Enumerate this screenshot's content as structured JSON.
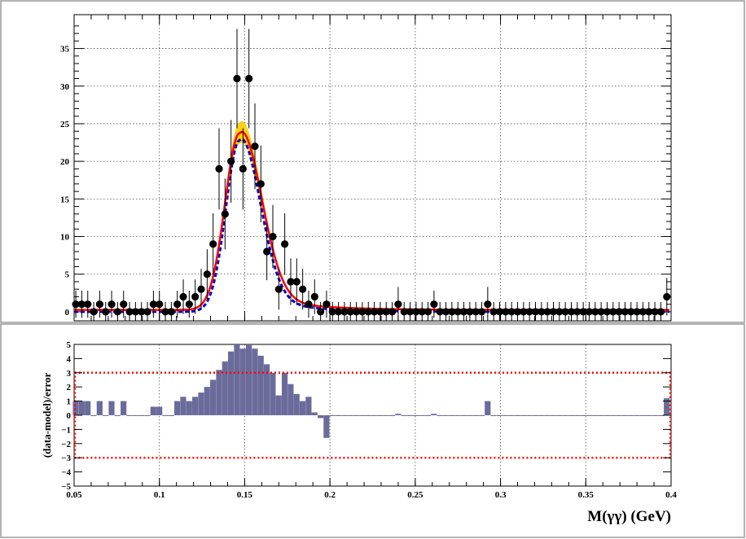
{
  "chart_data": [
    {
      "type": "scatter",
      "panel": "fit",
      "xlabel": "",
      "ylabel": "",
      "xlim": [
        0.05,
        0.4
      ],
      "ylim": [
        -1.2,
        39.5
      ],
      "yticks": [
        "0",
        "5",
        "10",
        "15",
        "20",
        "25",
        "30",
        "35"
      ],
      "grid": true,
      "data": {
        "x": [
          0.051,
          0.0545,
          0.058,
          0.0615,
          0.065,
          0.0685,
          0.072,
          0.0755,
          0.079,
          0.0825,
          0.086,
          0.0895,
          0.093,
          0.0965,
          0.1,
          0.1035,
          0.107,
          0.1105,
          0.114,
          0.1175,
          0.121,
          0.1245,
          0.128,
          0.1315,
          0.135,
          0.1385,
          0.142,
          0.1455,
          0.149,
          0.1525,
          0.156,
          0.1595,
          0.163,
          0.1665,
          0.17,
          0.1735,
          0.177,
          0.1805,
          0.184,
          0.1875,
          0.191,
          0.1945,
          0.198,
          0.2015,
          0.205,
          0.2085,
          0.212,
          0.2155,
          0.219,
          0.2225,
          0.226,
          0.2295,
          0.233,
          0.2365,
          0.24,
          0.2435,
          0.247,
          0.2505,
          0.254,
          0.2575,
          0.261,
          0.2645,
          0.268,
          0.2715,
          0.275,
          0.2785,
          0.282,
          0.2855,
          0.289,
          0.2925,
          0.296,
          0.2995,
          0.303,
          0.3065,
          0.31,
          0.3135,
          0.317,
          0.3205,
          0.324,
          0.3275,
          0.331,
          0.3345,
          0.338,
          0.3415,
          0.345,
          0.3485,
          0.352,
          0.3555,
          0.359,
          0.3625,
          0.366,
          0.3695,
          0.373,
          0.3765,
          0.38,
          0.3835,
          0.387,
          0.3905,
          0.394,
          0.3975
        ],
        "y": [
          1,
          1,
          1,
          0,
          1,
          0,
          1,
          0,
          1,
          0,
          0,
          0,
          0,
          1,
          1,
          0,
          0,
          1,
          2,
          1,
          2,
          3,
          5,
          9,
          19,
          13,
          20,
          31,
          19,
          31,
          22,
          17,
          8,
          10,
          3,
          9,
          4,
          4,
          3,
          1,
          2,
          0,
          1,
          0,
          0,
          0,
          0,
          0,
          0,
          0,
          0,
          0,
          0,
          0,
          1,
          0,
          0,
          0,
          0,
          0,
          1,
          0,
          0,
          0,
          0,
          0,
          0,
          0,
          0,
          1,
          0,
          0,
          0,
          0,
          0,
          0,
          0,
          0,
          0,
          0,
          0,
          0,
          0,
          0,
          0,
          0,
          0,
          0,
          0,
          0,
          0,
          0,
          0,
          0,
          0,
          0,
          0,
          0,
          0,
          2
        ],
        "err": [
          1.8,
          1.8,
          1.8,
          1.3,
          1.8,
          1.3,
          1.8,
          1.3,
          1.8,
          1.3,
          1.3,
          1.3,
          1.3,
          1.8,
          1.8,
          1.3,
          1.3,
          1.8,
          2.3,
          1.8,
          2.3,
          2.7,
          3.3,
          4.1,
          5.4,
          4.7,
          5.5,
          6.6,
          5.4,
          6.6,
          5.7,
          5.1,
          3.8,
          4.2,
          2.7,
          4.1,
          3.1,
          3.1,
          2.7,
          1.8,
          2.3,
          1.3,
          1.8,
          1.3,
          1.3,
          1.3,
          1.3,
          1.3,
          1.3,
          1.3,
          1.3,
          1.3,
          1.3,
          1.3,
          2.3,
          1.3,
          1.3,
          1.3,
          1.3,
          1.3,
          1.8,
          1.3,
          1.3,
          1.3,
          1.3,
          1.3,
          1.3,
          1.3,
          1.3,
          2.3,
          1.3,
          1.3,
          1.3,
          1.3,
          1.3,
          1.3,
          1.3,
          1.3,
          1.3,
          1.3,
          1.3,
          1.3,
          1.3,
          1.3,
          1.3,
          1.3,
          1.3,
          1.3,
          1.3,
          1.3,
          1.3,
          1.3,
          1.3,
          1.3,
          1.3,
          1.3,
          1.3,
          1.3,
          1.3,
          2.5
        ]
      },
      "model_curves": [
        {
          "color": "#ff0000",
          "style": "solid",
          "peak_x": 0.147,
          "peak_y": 23.5,
          "sigma_left": 0.0085,
          "sigma_right": 0.0125,
          "tail": 0.6,
          "baseline": 0.25
        },
        {
          "color": "#0000cc",
          "style": "dashed",
          "peak_x": 0.147,
          "peak_y": 22.8,
          "sigma_left": 0.008,
          "sigma_right": 0.0118,
          "tail": 0.6,
          "baseline": 0.0
        }
      ],
      "band_color": "#ffcc00"
    },
    {
      "type": "bar",
      "panel": "pull",
      "ylabel": "(data-model)/error",
      "xlabel": "M(γγ) (GeV)",
      "xlim": [
        0.05,
        0.4
      ],
      "ylim": [
        -5,
        5
      ],
      "xticks": [
        "0.05",
        "0.1",
        "0.15",
        "0.2",
        "0.25",
        "0.3",
        "0.35",
        "0.4"
      ],
      "yticks": [
        "−5",
        "−4",
        "−3",
        "−2",
        "−1",
        "0",
        "1",
        "2",
        "3",
        "4",
        "5"
      ],
      "bar_color": "#6b6b9b",
      "bands": [
        -3,
        3
      ],
      "band_color": "#ff0000",
      "bin_width": 0.0035,
      "x": [
        0.051,
        0.0545,
        0.058,
        0.0615,
        0.065,
        0.0685,
        0.072,
        0.0755,
        0.079,
        0.0825,
        0.086,
        0.0895,
        0.093,
        0.0965,
        0.1,
        0.1035,
        0.107,
        0.1105,
        0.114,
        0.1175,
        0.121,
        0.1245,
        0.128,
        0.1315,
        0.135,
        0.1385,
        0.142,
        0.1455,
        0.149,
        0.1525,
        0.156,
        0.1595,
        0.163,
        0.1665,
        0.17,
        0.1735,
        0.177,
        0.1805,
        0.184,
        0.1875,
        0.191,
        0.1945,
        0.198,
        0.2015,
        0.205,
        0.2085,
        0.212,
        0.2155,
        0.219,
        0.2225,
        0.226,
        0.2295,
        0.233,
        0.2365,
        0.24,
        0.2435,
        0.247,
        0.2505,
        0.254,
        0.2575,
        0.261,
        0.2645,
        0.268,
        0.2715,
        0.275,
        0.2785,
        0.282,
        0.2855,
        0.289,
        0.2925,
        0.296,
        0.2995,
        0.303,
        0.3065,
        0.31,
        0.3135,
        0.317,
        0.3205,
        0.324,
        0.3275,
        0.331,
        0.3345,
        0.338,
        0.3415,
        0.345,
        0.3485,
        0.352,
        0.3555,
        0.359,
        0.3625,
        0.366,
        0.3695,
        0.373,
        0.3765,
        0.38,
        0.3835,
        0.387,
        0.3905,
        0.394,
        0.3975
      ],
      "values": [
        1.0,
        1.0,
        1.0,
        0,
        1.0,
        0,
        1.0,
        0,
        1.0,
        0,
        0,
        0,
        0,
        0.6,
        0.6,
        0,
        0,
        1.0,
        1.3,
        1.0,
        1.3,
        1.6,
        2.0,
        2.5,
        3.2,
        3.8,
        4.5,
        5.0,
        4.7,
        5.0,
        4.7,
        4.2,
        3.6,
        3.0,
        1.4,
        3.0,
        2.2,
        1.5,
        1.0,
        1.3,
        0.2,
        -0.2,
        -1.6,
        0,
        0,
        0,
        0,
        0,
        0,
        0,
        0,
        0,
        0,
        0,
        0.1,
        0,
        0,
        0,
        0,
        0,
        0.1,
        0,
        0,
        0,
        0,
        0,
        0,
        0,
        0,
        1.0,
        0,
        0,
        0,
        0,
        0,
        0,
        0,
        0,
        0,
        0,
        0,
        0,
        0,
        0,
        0,
        0,
        0,
        0,
        0,
        0,
        0,
        0,
        0,
        0,
        0,
        0,
        0,
        0,
        0,
        1.2
      ]
    }
  ]
}
